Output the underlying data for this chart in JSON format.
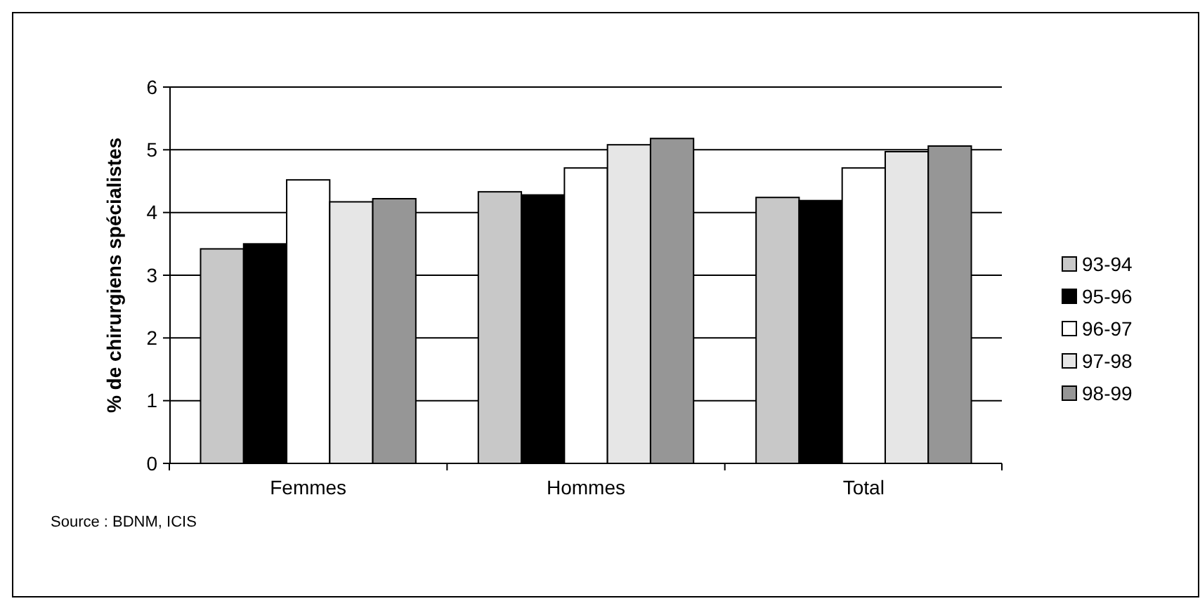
{
  "chart_data": {
    "type": "bar",
    "ylabel": "% de chirurgiens spécialistes",
    "categories": [
      "Femmes",
      "Hommes",
      "Total"
    ],
    "series": [
      {
        "name": "93-94",
        "color": "#c8c8c8",
        "values": [
          3.42,
          4.33,
          4.24
        ]
      },
      {
        "name": "95-96",
        "color": "#000000",
        "values": [
          3.5,
          4.28,
          4.19
        ]
      },
      {
        "name": "96-97",
        "color": "#ffffff",
        "values": [
          4.52,
          4.71,
          4.71
        ]
      },
      {
        "name": "97-98",
        "color": "#e6e6e6",
        "values": [
          4.17,
          5.08,
          4.97
        ]
      },
      {
        "name": "98-99",
        "color": "#969696",
        "values": [
          4.22,
          5.18,
          5.06
        ]
      }
    ],
    "ylim": [
      0,
      6
    ],
    "yticks": [
      0,
      1,
      2,
      3,
      4,
      5,
      6
    ],
    "grid": "y",
    "legend": "right",
    "annotations": [
      "Source : BDNM, ICIS"
    ]
  }
}
